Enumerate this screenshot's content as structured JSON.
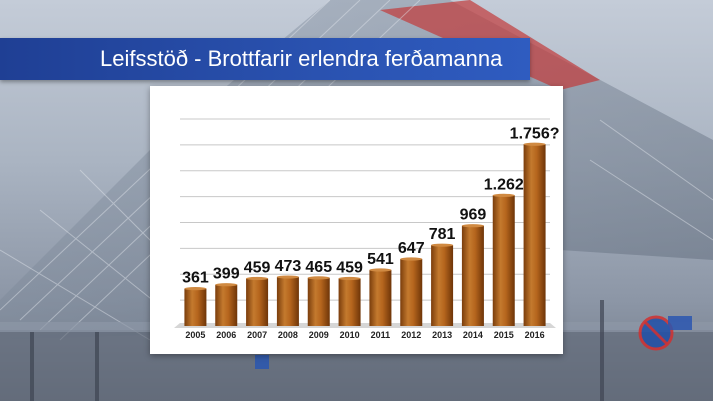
{
  "header": {
    "title": "Leifsstöð - Brottfarir erlendra ferðamanna"
  },
  "chart_data": {
    "type": "bar",
    "title": "Leifsstöð - Brottfarir erlendra ferðamanna",
    "categories": [
      "2005",
      "2006",
      "2007",
      "2008",
      "2009",
      "2010",
      "2011",
      "2012",
      "2013",
      "2014",
      "2015",
      "2016"
    ],
    "values": [
      361,
      399,
      459,
      473,
      465,
      459,
      541,
      647,
      781,
      969,
      1262,
      1756
    ],
    "value_labels": [
      "361",
      "399",
      "459",
      "473",
      "465",
      "459",
      "541",
      "647",
      "781",
      "969",
      "1.262",
      "1.756?"
    ],
    "xlabel": "",
    "ylabel": "",
    "ylim": [
      0,
      2000
    ],
    "grid": true,
    "bar_color": "#b5651d"
  }
}
